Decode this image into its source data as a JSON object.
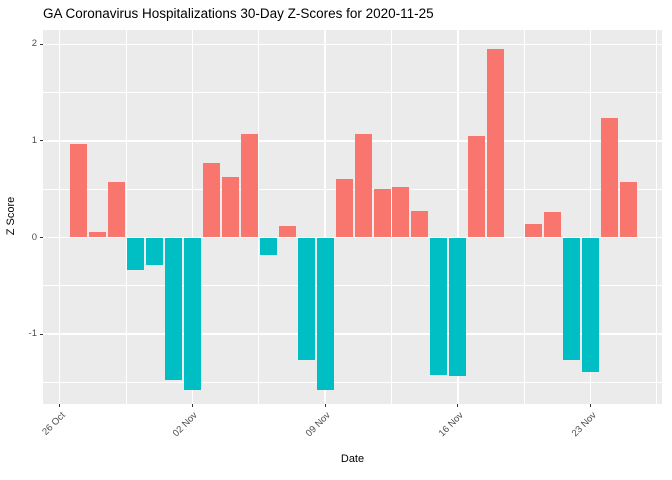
{
  "chart_data": {
    "type": "bar",
    "title": "GA Coronavirus Hospitalizations 30-Day Z-Scores for 2020-11-25",
    "xlabel": "Date",
    "ylabel": "Z Score",
    "ylim": [
      -1.72,
      2.15
    ],
    "y_ticks": [
      2,
      1,
      0,
      -1
    ],
    "x_ticks": [
      {
        "date": "2020-10-26",
        "label": "26 Oct"
      },
      {
        "date": "2020-11-02",
        "label": "02 Nov"
      },
      {
        "date": "2020-11-09",
        "label": "09 Nov"
      },
      {
        "date": "2020-11-16",
        "label": "16 Nov"
      },
      {
        "date": "2020-11-23",
        "label": "23 Nov"
      }
    ],
    "grid": true,
    "legend": "none",
    "colors": {
      "positive": "#F8766D",
      "negative": "#00BFC4",
      "panel_background": "#EBEBEB",
      "gridline": "#FFFFFF",
      "axis_text": "#4D4D4D",
      "title_text": "#000000"
    },
    "points": [
      {
        "date": "2020-10-27",
        "value": 0.97
      },
      {
        "date": "2020-10-28",
        "value": 0.06
      },
      {
        "date": "2020-10-29",
        "value": 0.58
      },
      {
        "date": "2020-10-30",
        "value": -0.34
      },
      {
        "date": "2020-10-31",
        "value": -0.29
      },
      {
        "date": "2020-11-01",
        "value": -1.48
      },
      {
        "date": "2020-11-02",
        "value": -1.58
      },
      {
        "date": "2020-11-03",
        "value": 0.77
      },
      {
        "date": "2020-11-04",
        "value": 0.63
      },
      {
        "date": "2020-11-05",
        "value": 1.07
      },
      {
        "date": "2020-11-06",
        "value": -0.18
      },
      {
        "date": "2020-11-07",
        "value": 0.12
      },
      {
        "date": "2020-11-08",
        "value": -1.27
      },
      {
        "date": "2020-11-09",
        "value": -1.58
      },
      {
        "date": "2020-11-10",
        "value": 0.61
      },
      {
        "date": "2020-11-11",
        "value": 1.07
      },
      {
        "date": "2020-11-12",
        "value": 0.5
      },
      {
        "date": "2020-11-13",
        "value": 0.52
      },
      {
        "date": "2020-11-14",
        "value": 0.27
      },
      {
        "date": "2020-11-15",
        "value": -1.42
      },
      {
        "date": "2020-11-16",
        "value": -1.44
      },
      {
        "date": "2020-11-17",
        "value": 1.05
      },
      {
        "date": "2020-11-18",
        "value": 1.95
      },
      {
        "date": "2020-11-19",
        "value": 0.0
      },
      {
        "date": "2020-11-20",
        "value": 0.14
      },
      {
        "date": "2020-11-21",
        "value": 0.26
      },
      {
        "date": "2020-11-22",
        "value": -1.27
      },
      {
        "date": "2020-11-23",
        "value": -1.39
      },
      {
        "date": "2020-11-24",
        "value": 1.24
      },
      {
        "date": "2020-11-25",
        "value": 0.57
      }
    ]
  }
}
